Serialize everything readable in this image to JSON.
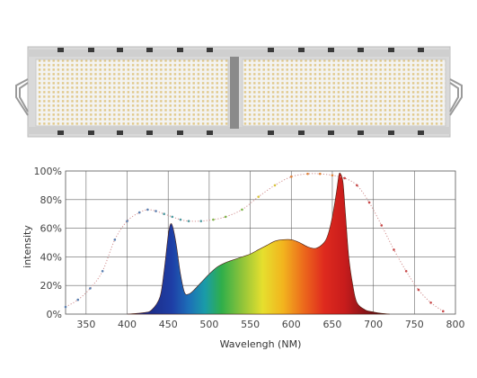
{
  "product": {
    "image_subject": "LED grow light fixture with two LED panels",
    "panel_count": 2
  },
  "chart_data": {
    "type": "area",
    "title": "",
    "xlabel": "Wavelengh (NM)",
    "ylabel": "intensity",
    "xlim": [
      325,
      800
    ],
    "ylim": [
      0,
      100
    ],
    "x_ticks": [
      "350",
      "400",
      "450",
      "500",
      "550",
      "600",
      "650",
      "700",
      "750",
      "800"
    ],
    "y_ticks": [
      "0%",
      "20%",
      "40%",
      "60%",
      "80%",
      "100%"
    ],
    "grid": true,
    "legend": "none",
    "series": [
      {
        "style": "filled-spectrum",
        "x": [
          400,
          420,
          430,
          440,
          445,
          450,
          453,
          456,
          460,
          465,
          470,
          475,
          480,
          490,
          500,
          510,
          520,
          530,
          540,
          550,
          560,
          570,
          580,
          590,
          600,
          610,
          620,
          630,
          640,
          645,
          650,
          655,
          658,
          660,
          663,
          666,
          670,
          675,
          680,
          690,
          700,
          710,
          720
        ],
        "values": [
          0,
          1,
          3,
          12,
          30,
          55,
          63,
          60,
          48,
          28,
          15,
          14,
          16,
          22,
          28,
          33,
          36,
          38,
          40,
          42,
          45,
          48,
          51,
          52,
          52,
          50,
          47,
          46,
          50,
          56,
          68,
          85,
          97,
          98,
          92,
          70,
          40,
          20,
          8,
          3,
          1.5,
          0.5,
          0
        ]
      },
      {
        "style": "dotted-envelope",
        "x": [
          325,
          340,
          355,
          370,
          385,
          400,
          415,
          425,
          435,
          445,
          455,
          465,
          475,
          490,
          505,
          520,
          540,
          560,
          580,
          600,
          620,
          635,
          650,
          665,
          680,
          695,
          710,
          725,
          740,
          755,
          770,
          785
        ],
        "values": [
          5,
          10,
          18,
          30,
          52,
          65,
          71,
          73,
          72,
          70,
          68,
          66,
          65,
          65,
          66,
          68,
          73,
          82,
          90,
          96,
          98,
          98,
          97,
          95,
          90,
          78,
          62,
          45,
          30,
          17,
          8,
          2
        ]
      }
    ]
  }
}
